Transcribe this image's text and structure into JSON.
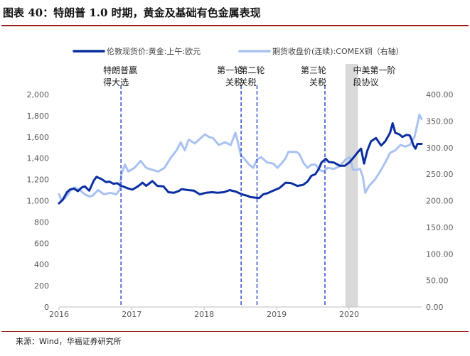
{
  "title": "图表 40：特朗普 1.0 时期，黄金及基础有色金属表现",
  "source": "来源：Wind，华福证券研究所",
  "colors": {
    "gold": "#0a2fa0",
    "copper": "#a9c2f2",
    "marker": "#1f3fc7",
    "shade": "#d9d9d9",
    "accent_rule": "#9c1f1f"
  },
  "chart_data": {
    "type": "line",
    "x_type": "date",
    "x_range": [
      "2016-01-01",
      "2020-12-31"
    ],
    "x_tick_labels": [
      "2016",
      "2017",
      "2018",
      "2019",
      "2020"
    ],
    "y_left": {
      "range": [
        0,
        2000
      ],
      "ticks": [
        "0",
        "200",
        "400",
        "600",
        "800",
        "1,000",
        "1,200",
        "1,400",
        "1,600",
        "1,800",
        "2,000"
      ]
    },
    "y_right": {
      "range": [
        0,
        400
      ],
      "ticks": [
        "0.00",
        "50.00",
        "100.00",
        "150.00",
        "200.00",
        "250.00",
        "300.00",
        "350.00",
        "400.00"
      ]
    },
    "legend_position": "top",
    "series": [
      {
        "name": "伦敦现货价:黄金:上午:欧元",
        "axis": "left",
        "points": [
          [
            "2016-01-01",
            975
          ],
          [
            "2016-01-20",
            1010
          ],
          [
            "2016-02-10",
            1080
          ],
          [
            "2016-02-25",
            1105
          ],
          [
            "2016-03-15",
            1115
          ],
          [
            "2016-04-05",
            1090
          ],
          [
            "2016-04-25",
            1125
          ],
          [
            "2016-05-10",
            1135
          ],
          [
            "2016-06-01",
            1095
          ],
          [
            "2016-06-24",
            1190
          ],
          [
            "2016-07-08",
            1225
          ],
          [
            "2016-08-01",
            1205
          ],
          [
            "2016-08-25",
            1175
          ],
          [
            "2016-09-10",
            1180
          ],
          [
            "2016-10-01",
            1160
          ],
          [
            "2016-10-20",
            1165
          ],
          [
            "2016-11-09",
            1140
          ],
          [
            "2016-11-25",
            1130
          ],
          [
            "2016-12-15",
            1115
          ],
          [
            "2017-01-05",
            1105
          ],
          [
            "2017-02-01",
            1135
          ],
          [
            "2017-02-25",
            1170
          ],
          [
            "2017-03-15",
            1140
          ],
          [
            "2017-04-15",
            1185
          ],
          [
            "2017-05-10",
            1140
          ],
          [
            "2017-06-10",
            1135
          ],
          [
            "2017-07-05",
            1080
          ],
          [
            "2017-08-01",
            1075
          ],
          [
            "2017-08-25",
            1090
          ],
          [
            "2017-09-10",
            1110
          ],
          [
            "2017-10-10",
            1100
          ],
          [
            "2017-11-10",
            1095
          ],
          [
            "2017-12-10",
            1060
          ],
          [
            "2018-01-10",
            1075
          ],
          [
            "2018-02-10",
            1080
          ],
          [
            "2018-03-10",
            1075
          ],
          [
            "2018-04-10",
            1080
          ],
          [
            "2018-05-10",
            1100
          ],
          [
            "2018-06-10",
            1085
          ],
          [
            "2018-07-10",
            1060
          ],
          [
            "2018-08-10",
            1045
          ],
          [
            "2018-08-20",
            1035
          ],
          [
            "2018-09-10",
            1030
          ],
          [
            "2018-10-05",
            1025
          ],
          [
            "2018-10-25",
            1060
          ],
          [
            "2018-11-15",
            1070
          ],
          [
            "2018-12-15",
            1095
          ],
          [
            "2019-01-15",
            1120
          ],
          [
            "2019-02-15",
            1170
          ],
          [
            "2019-03-15",
            1165
          ],
          [
            "2019-04-15",
            1140
          ],
          [
            "2019-05-15",
            1150
          ],
          [
            "2019-06-05",
            1180
          ],
          [
            "2019-06-25",
            1235
          ],
          [
            "2019-07-15",
            1250
          ],
          [
            "2019-08-01",
            1300
          ],
          [
            "2019-08-15",
            1360
          ],
          [
            "2019-09-05",
            1395
          ],
          [
            "2019-09-20",
            1365
          ],
          [
            "2019-10-15",
            1360
          ],
          [
            "2019-11-15",
            1330
          ],
          [
            "2019-12-10",
            1330
          ],
          [
            "2020-01-01",
            1360
          ],
          [
            "2020-01-20",
            1400
          ],
          [
            "2020-02-15",
            1460
          ],
          [
            "2020-03-01",
            1490
          ],
          [
            "2020-03-16",
            1350
          ],
          [
            "2020-04-01",
            1470
          ],
          [
            "2020-04-20",
            1560
          ],
          [
            "2020-05-15",
            1590
          ],
          [
            "2020-06-10",
            1520
          ],
          [
            "2020-07-01",
            1560
          ],
          [
            "2020-07-25",
            1640
          ],
          [
            "2020-08-07",
            1730
          ],
          [
            "2020-08-20",
            1640
          ],
          [
            "2020-09-10",
            1625
          ],
          [
            "2020-09-25",
            1600
          ],
          [
            "2020-10-15",
            1620
          ],
          [
            "2020-11-01",
            1615
          ],
          [
            "2020-11-09",
            1580
          ],
          [
            "2020-11-20",
            1520
          ],
          [
            "2020-11-30",
            1490
          ],
          [
            "2020-12-10",
            1535
          ],
          [
            "2020-12-31",
            1535
          ]
        ]
      },
      {
        "name": "期货收盘价(连续):COMEX铜（右轴）",
        "axis": "right",
        "points": [
          [
            "2016-01-01",
            212
          ],
          [
            "2016-01-15",
            200
          ],
          [
            "2016-02-01",
            205
          ],
          [
            "2016-03-01",
            220
          ],
          [
            "2016-03-20",
            225
          ],
          [
            "2016-04-15",
            220
          ],
          [
            "2016-05-10",
            212
          ],
          [
            "2016-06-01",
            208
          ],
          [
            "2016-06-20",
            210
          ],
          [
            "2016-07-15",
            220
          ],
          [
            "2016-08-15",
            212
          ],
          [
            "2016-09-15",
            215
          ],
          [
            "2016-10-15",
            212
          ],
          [
            "2016-11-01",
            220
          ],
          [
            "2016-11-10",
            250
          ],
          [
            "2016-11-28",
            268
          ],
          [
            "2016-12-15",
            255
          ],
          [
            "2017-01-15",
            262
          ],
          [
            "2017-02-15",
            275
          ],
          [
            "2017-03-15",
            262
          ],
          [
            "2017-04-15",
            258
          ],
          [
            "2017-05-15",
            255
          ],
          [
            "2017-06-15",
            262
          ],
          [
            "2017-07-15",
            280
          ],
          [
            "2017-08-15",
            295
          ],
          [
            "2017-09-05",
            310
          ],
          [
            "2017-09-25",
            295
          ],
          [
            "2017-10-15",
            315
          ],
          [
            "2017-11-15",
            308
          ],
          [
            "2017-12-15",
            318
          ],
          [
            "2018-01-05",
            325
          ],
          [
            "2018-01-25",
            320
          ],
          [
            "2018-02-15",
            318
          ],
          [
            "2018-03-15",
            305
          ],
          [
            "2018-04-15",
            310
          ],
          [
            "2018-05-15",
            305
          ],
          [
            "2018-06-07",
            328
          ],
          [
            "2018-06-20",
            310
          ],
          [
            "2018-07-05",
            285
          ],
          [
            "2018-07-20",
            280
          ],
          [
            "2018-08-15",
            268
          ],
          [
            "2018-09-05",
            262
          ],
          [
            "2018-09-25",
            278
          ],
          [
            "2018-10-15",
            282
          ],
          [
            "2018-11-15",
            272
          ],
          [
            "2018-12-15",
            270
          ],
          [
            "2019-01-05",
            262
          ],
          [
            "2019-01-25",
            270
          ],
          [
            "2019-02-15",
            280
          ],
          [
            "2019-03-01",
            292
          ],
          [
            "2019-04-10",
            292
          ],
          [
            "2019-04-25",
            288
          ],
          [
            "2019-05-15",
            272
          ],
          [
            "2019-06-05",
            262
          ],
          [
            "2019-06-25",
            268
          ],
          [
            "2019-07-15",
            268
          ],
          [
            "2019-08-05",
            258
          ],
          [
            "2019-08-25",
            255
          ],
          [
            "2019-09-15",
            262
          ],
          [
            "2019-10-15",
            260
          ],
          [
            "2019-11-15",
            265
          ],
          [
            "2019-12-15",
            278
          ],
          [
            "2020-01-05",
            282
          ],
          [
            "2020-01-20",
            258
          ],
          [
            "2020-02-05",
            258
          ],
          [
            "2020-02-25",
            260
          ],
          [
            "2020-03-10",
            245
          ],
          [
            "2020-03-22",
            215
          ],
          [
            "2020-04-10",
            228
          ],
          [
            "2020-05-10",
            240
          ],
          [
            "2020-06-05",
            255
          ],
          [
            "2020-07-05",
            275
          ],
          [
            "2020-07-25",
            290
          ],
          [
            "2020-08-20",
            295
          ],
          [
            "2020-09-15",
            305
          ],
          [
            "2020-10-10",
            302
          ],
          [
            "2020-11-01",
            305
          ],
          [
            "2020-11-25",
            320
          ],
          [
            "2020-12-10",
            345
          ],
          [
            "2020-12-20",
            362
          ],
          [
            "2020-12-31",
            354
          ]
        ]
      }
    ],
    "annotations": [
      {
        "date": "2016-11-08",
        "lines": [
          "特朗普赢",
          "得大选"
        ],
        "anchor": "start"
      },
      {
        "date": "2018-07-06",
        "lines": [
          "第一轮",
          "关税"
        ],
        "anchor": "end"
      },
      {
        "date": "2018-09-24",
        "lines": [
          "第二轮",
          "关税"
        ],
        "anchor": "start"
      },
      {
        "date": "2019-09-01",
        "lines": [
          "第三轮",
          "关税"
        ],
        "anchor": "end"
      }
    ],
    "shaded_band": {
      "from": "2019-12-13",
      "to": "2020-02-14",
      "lines": [
        "中美第一阶",
        "段协议"
      ]
    }
  }
}
